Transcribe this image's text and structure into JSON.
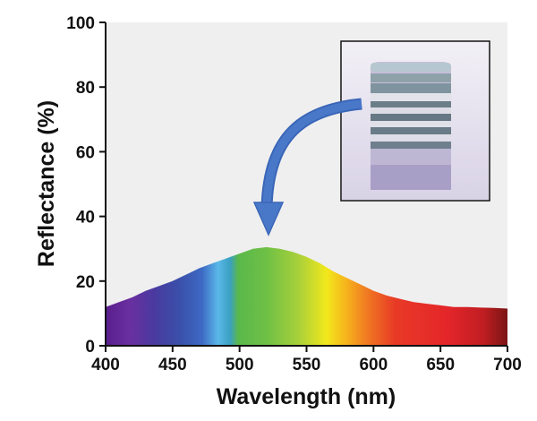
{
  "chart_data": {
    "type": "area",
    "title": "",
    "xlabel": "Wavelength (nm)",
    "ylabel": "Reflectance (%)",
    "xlim": [
      400,
      700
    ],
    "ylim": [
      0,
      100
    ],
    "xticks": [
      "400",
      "450",
      "500",
      "550",
      "600",
      "650",
      "700"
    ],
    "yticks": [
      "0",
      "20",
      "40",
      "60",
      "80",
      "100"
    ],
    "grid": false,
    "legend": "none",
    "fill": "visible-spectrum gradient",
    "plot_background": "#efefef",
    "x": [
      400,
      410,
      420,
      430,
      440,
      450,
      460,
      470,
      480,
      490,
      500,
      510,
      520,
      530,
      540,
      550,
      560,
      570,
      580,
      590,
      600,
      610,
      620,
      630,
      640,
      650,
      660,
      670,
      680,
      690,
      700
    ],
    "values": [
      12,
      13.5,
      15,
      17,
      18.5,
      20,
      22,
      24,
      25.5,
      27,
      28.5,
      30,
      30.5,
      30,
      29,
      27.5,
      25.5,
      23,
      21,
      19,
      17,
      15.5,
      14.5,
      13.5,
      13,
      12.5,
      12,
      12,
      11.8,
      11.7,
      11.5
    ],
    "annotations": {
      "inset": "photograph of a striped cylindrical sample",
      "arrow": "blue curved arrow from inset to spectrum peak"
    }
  }
}
